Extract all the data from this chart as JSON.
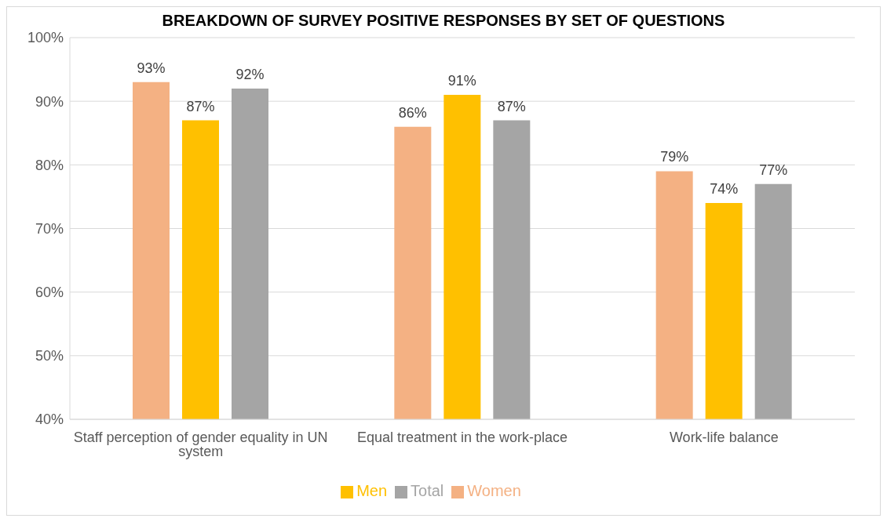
{
  "chart_data": {
    "type": "bar",
    "title": "BREAKDOWN OF SURVEY POSITIVE RESPONSES BY SET OF QUESTIONS",
    "categories": [
      "Staff perception of gender equality in UN system",
      "Equal treatment in the work-place",
      "Work-life balance"
    ],
    "series": [
      {
        "name": "Women",
        "color": "#f4b183",
        "values": [
          93,
          86,
          79
        ],
        "value_labels": [
          "93%",
          "86%",
          "79%"
        ]
      },
      {
        "name": "Men",
        "color": "#ffc000",
        "values": [
          87,
          91,
          74
        ],
        "value_labels": [
          "87%",
          "91%",
          "74%"
        ]
      },
      {
        "name": "Total",
        "color": "#a5a5a5",
        "values": [
          92,
          87,
          77
        ],
        "value_labels": [
          "92%",
          "87%",
          "77%"
        ]
      }
    ],
    "ylim": [
      40,
      100
    ],
    "yticks": [
      {
        "value": 40,
        "label": "40%"
      },
      {
        "value": 50,
        "label": "50%"
      },
      {
        "value": 60,
        "label": "60%"
      },
      {
        "value": 70,
        "label": "70%"
      },
      {
        "value": 80,
        "label": "80%"
      },
      {
        "value": 90,
        "label": "90%"
      },
      {
        "value": 100,
        "label": "100%"
      }
    ],
    "grid": "y",
    "legend": "bottom"
  }
}
